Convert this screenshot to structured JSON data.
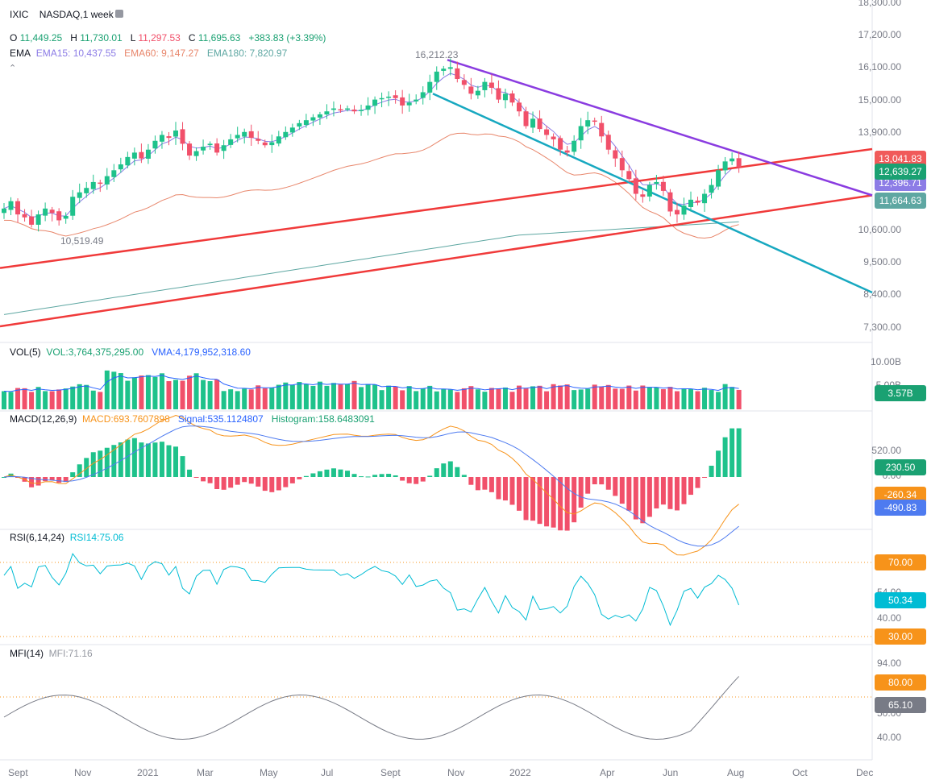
{
  "header": {
    "symbol": "IXIC",
    "exchange_interval": "NASDAQ,1 week",
    "ohlc": {
      "o_label": "O",
      "o": "11,449.25",
      "h_label": "H",
      "h": "11,730.01",
      "l_label": "L",
      "l": "11,297.53",
      "c_label": "C",
      "c": "11,695.63",
      "change": "+383.83 (+3.39%)"
    },
    "ema_label": "EMA",
    "ema15": "EMA15: 10,437.55",
    "ema60": "EMA60: 9,147.27",
    "ema180": "EMA180: 7,820.97"
  },
  "annotations": {
    "high": "16,212.23",
    "low": "10,519.49"
  },
  "price_axis": [
    "18,300.00",
    "17,200.00",
    "16,100.00",
    "15,000.00",
    "13,900.00",
    "10,600.00",
    "9,500.00",
    "8,400.00",
    "7,300.00"
  ],
  "price_badges": {
    "b1": {
      "text": "13,041.83",
      "color": "#f05a5a"
    },
    "b2": {
      "text": "12,639.27",
      "color": "#1aa172"
    },
    "b3": {
      "text": "12,396.71",
      "color": "#8c7ce6"
    },
    "b4": {
      "text": "11,664.63",
      "color": "#5ea7a2"
    }
  },
  "vol": {
    "title": "VOL(5)",
    "vol_value": "VOL:3,764,375,295.00",
    "vma_value": "VMA:4,179,952,318.60",
    "axis": [
      "10.00B",
      "5.00B"
    ],
    "badge": {
      "text": "3.57B",
      "color": "#2962ff"
    }
  },
  "macd": {
    "title": "MACD(12,26,9)",
    "macd_value": "MACD:693.7607898",
    "signal_value": "Signal:535.1124807",
    "hist_value": "Histogram:158.6483091",
    "axis": [
      "520.00",
      "0.00"
    ],
    "badges": {
      "hist": {
        "text": "230.50",
        "color": "#1aa172"
      },
      "macd": {
        "text": "-260.34",
        "color": "#f7931a"
      },
      "signal": {
        "text": "-490.83",
        "color": "#4e7bf0"
      }
    }
  },
  "rsi": {
    "title": "RSI(6,14,24)",
    "value": "RSI14:75.06",
    "axis": [
      "54.00",
      "40.00"
    ],
    "badges": {
      "b70": {
        "text": "70.00",
        "color": "#f7931a"
      },
      "cur": {
        "text": "50.34",
        "color": "#00bcd4"
      },
      "b30": {
        "text": "30.00",
        "color": "#f7931a"
      }
    }
  },
  "mfi": {
    "title": "MFI(14)",
    "value": "MFI:71.16",
    "axis": [
      "94.00",
      "50.00",
      "40.00"
    ],
    "badges": {
      "b80": {
        "text": "80.00",
        "color": "#f7931a"
      },
      "cur": {
        "text": "65.10",
        "color": "#787b86"
      }
    }
  },
  "x_axis": [
    "Sept",
    "Nov",
    "2021",
    "Mar",
    "May",
    "Jul",
    "Sept",
    "Nov",
    "2022",
    "Apr",
    "Jun",
    "Aug",
    "Oct",
    "Dec"
  ],
  "colors": {
    "up": "#1ec28b",
    "down": "#f1506a",
    "trend_red": "#f03a3a",
    "trend_purple": "#8a3ce0",
    "trend_teal": "#17a8c0"
  },
  "chart_data": {
    "type": "candlestick",
    "price_range": [
      7300,
      18300
    ],
    "closes_approx": [
      11300,
      11550,
      11100,
      11000,
      10750,
      11100,
      11300,
      11150,
      10900,
      11050,
      11700,
      11850,
      12000,
      12200,
      12150,
      12400,
      12600,
      12800,
      13050,
      13200,
      13000,
      13300,
      13600,
      13800,
      13700,
      13950,
      13500,
      13100,
      13250,
      13400,
      13500,
      13200,
      13450,
      13650,
      13800,
      13900,
      13700,
      13600,
      13450,
      13550,
      13750,
      13900,
      14050,
      14200,
      14300,
      14400,
      14500,
      14600,
      14700,
      14650,
      14700,
      14600,
      14650,
      14800,
      15000,
      15050,
      15100,
      15050,
      14800,
      14900,
      15000,
      15250,
      15600,
      15950,
      16050,
      16100,
      15700,
      15500,
      15200,
      15300,
      15600,
      15400,
      15000,
      15200,
      14900,
      14600,
      14100,
      14350,
      14000,
      13800,
      13650,
      13300,
      13200,
      13600,
      14100,
      14300,
      14250,
      13750,
      13300,
      13000,
      12600,
      12300,
      11800,
      11700,
      12100,
      12200,
      11900,
      11200,
      11100,
      11400,
      11600,
      11500,
      11800,
      12100,
      12600,
      12900,
      13000,
      12700
    ]
  }
}
